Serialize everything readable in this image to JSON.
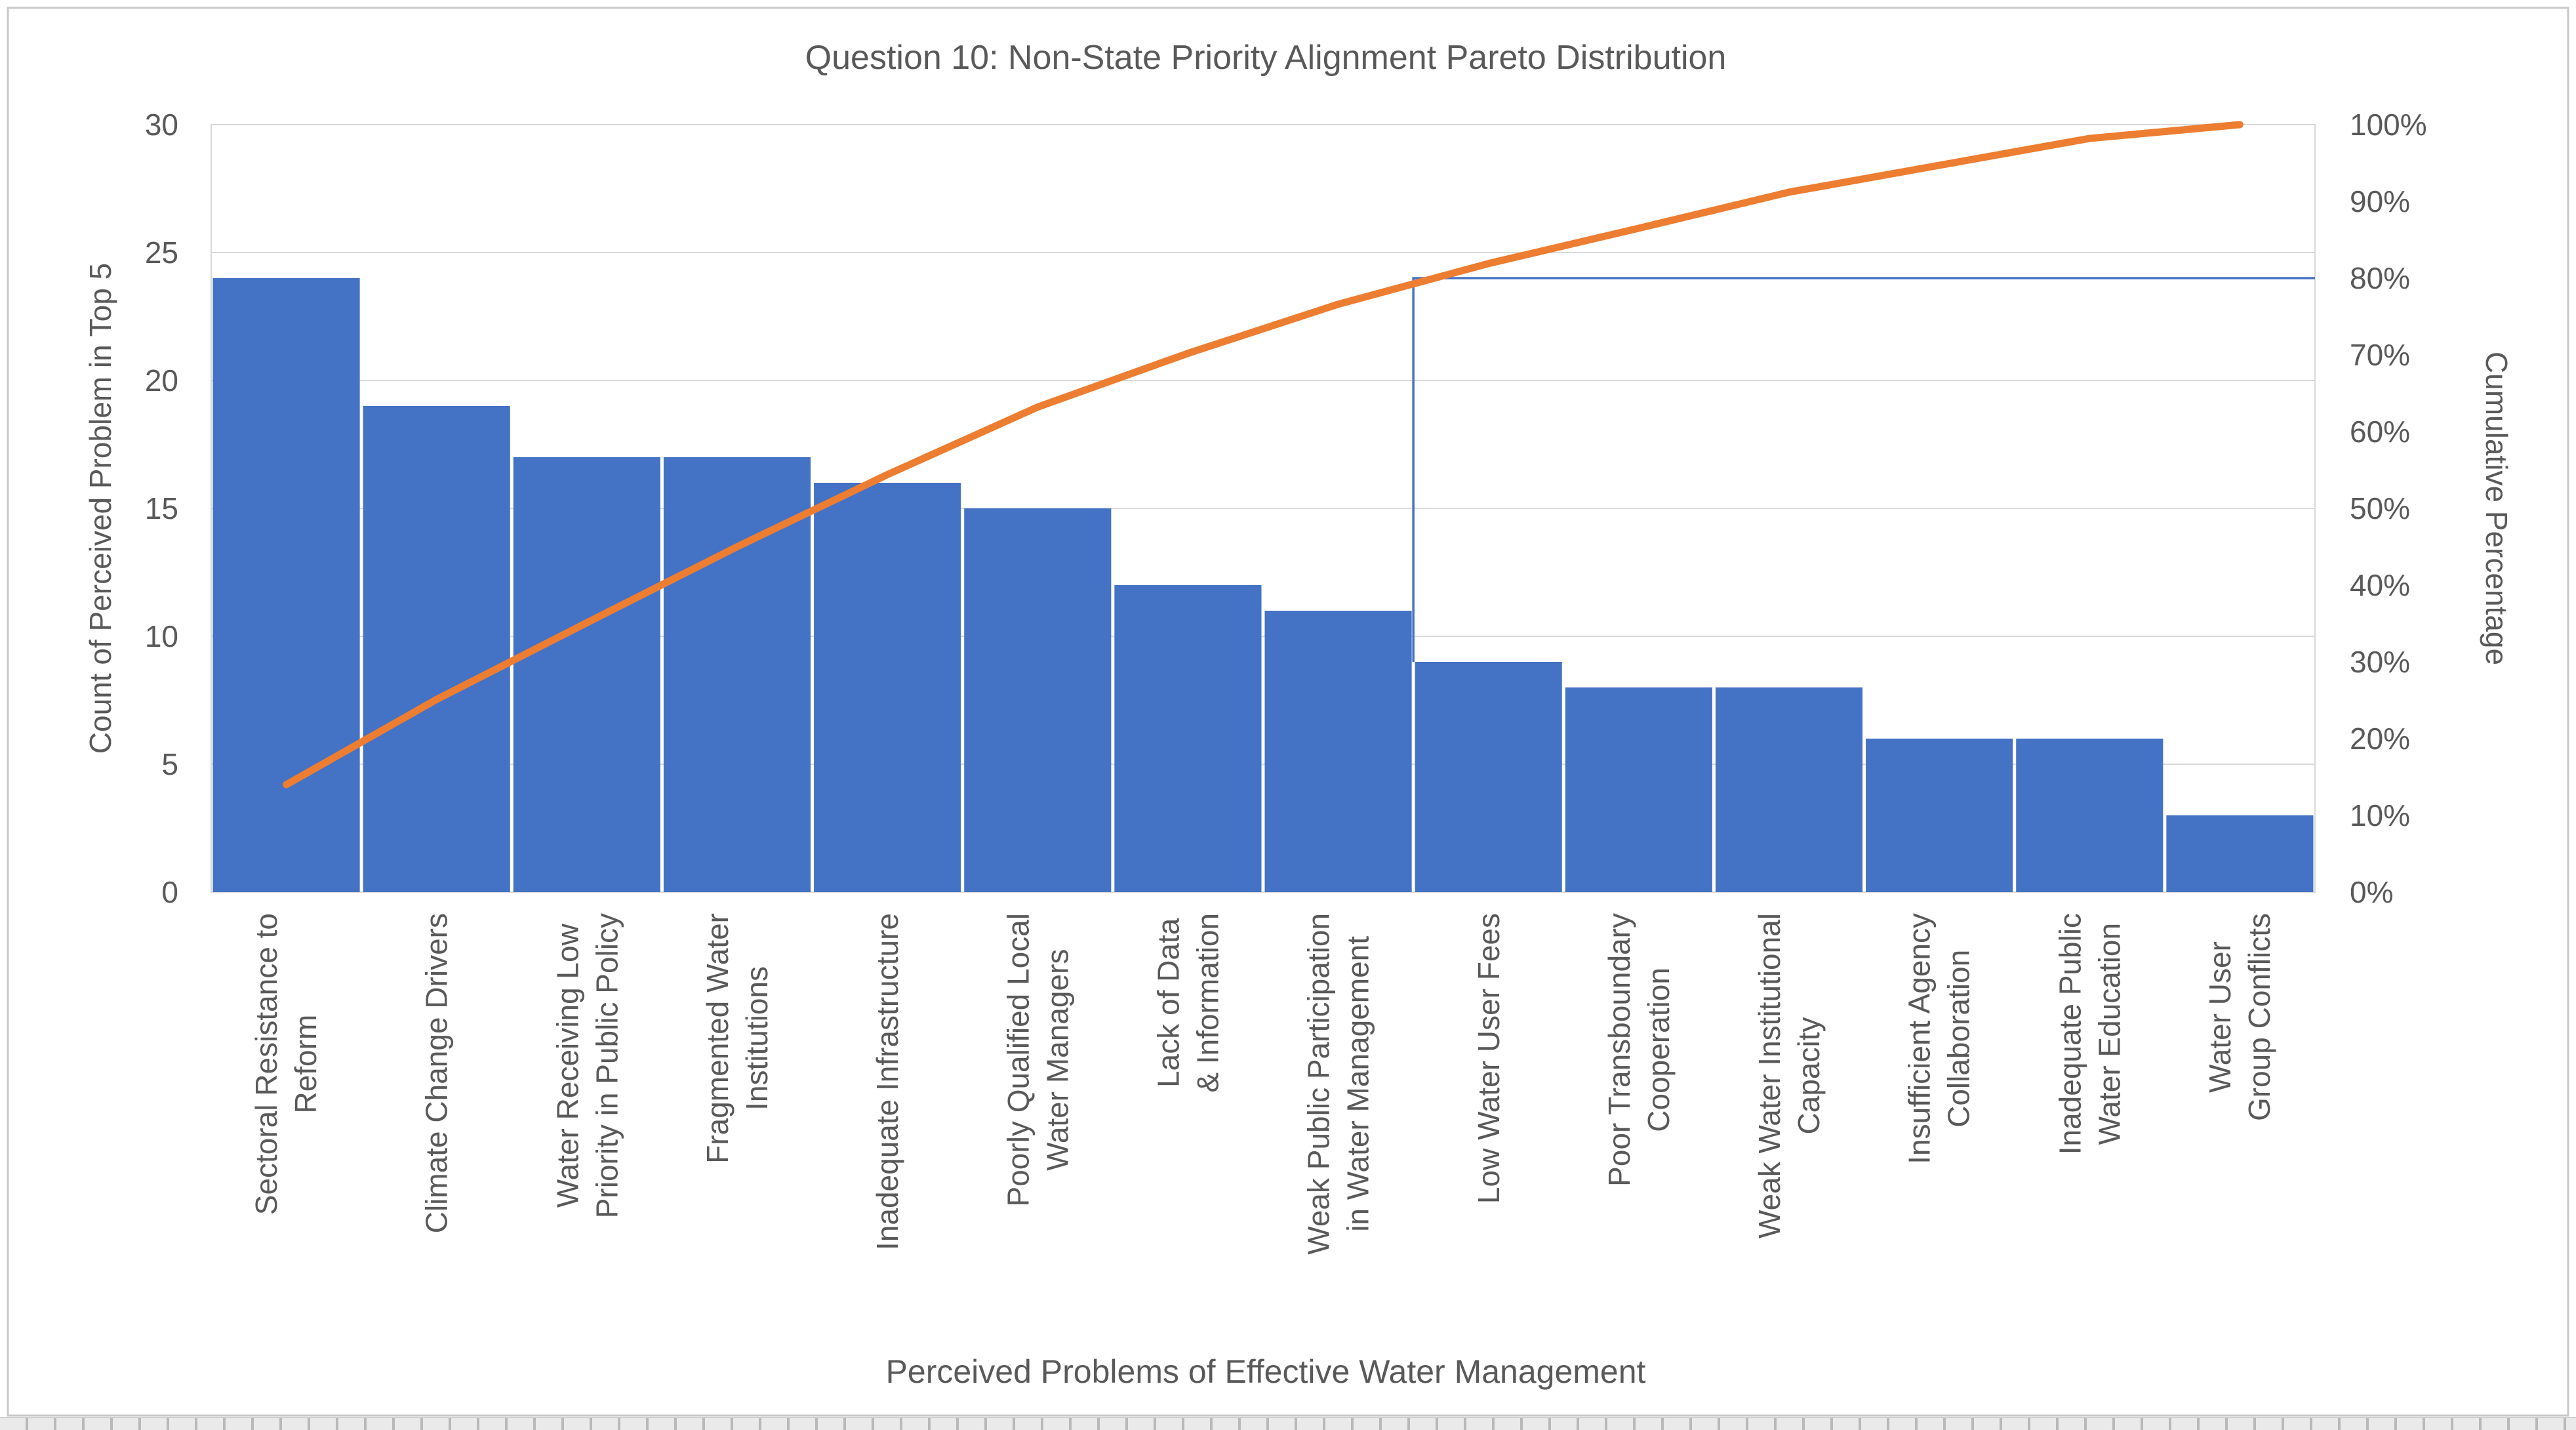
{
  "chart_data": {
    "type": "pareto",
    "title": "Question 10: Non-State Priority Alignment Pareto Distribution",
    "categories": [
      "Sectoral Resistance to\nReform",
      "Climate Change Drivers",
      "Water Receiving Low\nPriority in Public Policy",
      "Fragmented Water\nInstitutions",
      "Inadequate Infrastructure",
      "Poorly Qualified Local\nWater Managers",
      "Lack of Data\n& Information",
      "Weak Public Participation\nin Water Management",
      "Low Water User Fees",
      "Poor Transboundary\nCooperation",
      "Weak Water Institutional\nCapacity",
      "Insufficient Agency\nCollaboration",
      "Inadequate Public\nWater Education",
      "Water User\nGroup Conflicts"
    ],
    "values": [
      24,
      19,
      17,
      17,
      16,
      15,
      12,
      11,
      9,
      8,
      8,
      6,
      6,
      3
    ],
    "cumulative_pct": [
      14.0,
      25.1,
      35.1,
      45.0,
      54.4,
      63.2,
      70.2,
      76.6,
      81.9,
      86.5,
      91.2,
      94.7,
      98.2,
      100.0
    ],
    "x_axis": {
      "title": "Perceived Problems of Effective Water Management"
    },
    "y_axis_left": {
      "title": "Count of Perceived Problem in Top 5",
      "ticks": [
        "0",
        "5",
        "10",
        "15",
        "20",
        "25",
        "30"
      ],
      "min": 0,
      "max": 30,
      "step": 5
    },
    "y_axis_right": {
      "title": "Cumulative Percentage",
      "ticks": [
        "0%",
        "10%",
        "20%",
        "30%",
        "40%",
        "50%",
        "60%",
        "70%",
        "80%",
        "90%",
        "100%"
      ],
      "min": 0,
      "max": 100,
      "step": 10
    },
    "reference_line": {
      "pct": 80,
      "drops_at_category": "Low Water User Fees",
      "drop_index": 8
    },
    "grid": "horizontal-only",
    "legend": "none",
    "colors": {
      "bar": "#4472C4",
      "cumulative_line": "#ED7D31",
      "reference_line": "#4472C4",
      "gridline": "#D9D9D9",
      "plot_border": "#D9D9D9",
      "chart_border": "#C8C8C8",
      "text": "#595959"
    }
  }
}
